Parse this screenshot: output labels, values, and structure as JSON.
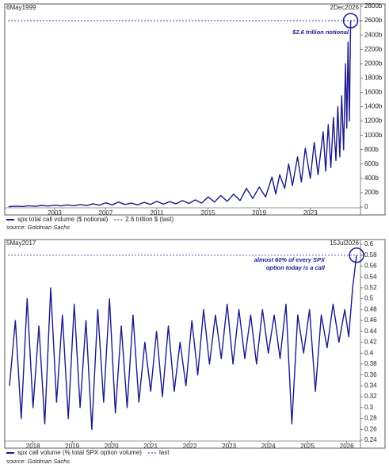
{
  "chart_data": [
    {
      "type": "line",
      "start_label": "6May1999",
      "end_label": "2Dec2026",
      "xlim": [
        1999.35,
        2026.92
      ],
      "xticks": [
        2003,
        2007,
        2011,
        2015,
        2019,
        2023
      ],
      "ylim": [
        0,
        2800
      ],
      "yticks": [
        {
          "value": 0,
          "label": "0"
        },
        {
          "value": 200,
          "label": "200b"
        },
        {
          "value": 400,
          "label": "400b"
        },
        {
          "value": 600,
          "label": "600b"
        },
        {
          "value": 800,
          "label": "800b"
        },
        {
          "value": 1000,
          "label": "1000b"
        },
        {
          "value": 1200,
          "label": "1200b"
        },
        {
          "value": 1400,
          "label": "1400b"
        },
        {
          "value": 1600,
          "label": "1600b"
        },
        {
          "value": 1800,
          "label": "1800b"
        },
        {
          "value": 2000,
          "label": "2000b"
        },
        {
          "value": 2200,
          "label": "2200b"
        },
        {
          "value": 2400,
          "label": "2400b"
        },
        {
          "value": 2600,
          "label": "2600b"
        },
        {
          "value": 2800,
          "label": "2800b"
        }
      ],
      "x": [
        1999.4,
        2000,
        2000.5,
        2001,
        2001.5,
        2002,
        2002.5,
        2003,
        2003.5,
        2004,
        2004.5,
        2005,
        2005.5,
        2006,
        2006.5,
        2007,
        2007.5,
        2008,
        2008.5,
        2009,
        2009.5,
        2010,
        2010.5,
        2011,
        2011.5,
        2012,
        2012.5,
        2013,
        2013.5,
        2014,
        2014.5,
        2015,
        2015.5,
        2016,
        2016.5,
        2017,
        2017.5,
        2018,
        2018.5,
        2019,
        2019.5,
        2020,
        2020.3,
        2020.6,
        2021,
        2021.3,
        2021.6,
        2022,
        2022.3,
        2022.6,
        2023,
        2023.3,
        2023.6,
        2024,
        2024.2,
        2024.4,
        2024.6,
        2024.8,
        2025,
        2025.15,
        2025.3,
        2025.45,
        2025.6,
        2025.75,
        2025.85,
        2025.95,
        2026.05,
        2026.15
      ],
      "series": [
        {
          "name": "spx total call volume ($ notional)",
          "color": "#1a1a8c",
          "values": [
            5,
            12,
            8,
            18,
            10,
            22,
            14,
            25,
            15,
            30,
            18,
            35,
            20,
            45,
            25,
            60,
            30,
            70,
            35,
            55,
            30,
            65,
            35,
            80,
            40,
            75,
            45,
            90,
            50,
            100,
            55,
            140,
            70,
            160,
            80,
            180,
            90,
            260,
            120,
            280,
            140,
            420,
            180,
            450,
            260,
            600,
            300,
            700,
            350,
            820,
            400,
            900,
            450,
            1050,
            500,
            1150,
            550,
            1250,
            650,
            1400,
            700,
            1550,
            800,
            2000,
            1100,
            2300,
            1200,
            2600
          ]
        }
      ],
      "reference_line": {
        "name": "2.6 trillion $ (last)",
        "value": 2600,
        "color": "#1a1a8c"
      },
      "annotation": [
        "$2.6 trillion notional"
      ],
      "source": "source: Goldman Sachs"
    },
    {
      "type": "line",
      "start_label": "5May2017",
      "end_label": "15Jul2026",
      "xlim": [
        2017.36,
        2026.35
      ],
      "xticks": [
        2018,
        2019,
        2020,
        2021,
        2022,
        2023,
        2024,
        2025,
        2026
      ],
      "ylim": [
        0.24,
        0.6
      ],
      "yticks": [
        0.24,
        0.26,
        0.28,
        0.3,
        0.32,
        0.34,
        0.36,
        0.38,
        0.4,
        0.42,
        0.44,
        0.46,
        0.48,
        0.5,
        0.52,
        0.54,
        0.56,
        0.58,
        0.6
      ],
      "x": [
        2017.4,
        2017.55,
        2017.7,
        2017.85,
        2018,
        2018.15,
        2018.3,
        2018.45,
        2018.6,
        2018.75,
        2018.9,
        2019.05,
        2019.2,
        2019.35,
        2019.5,
        2019.65,
        2019.8,
        2019.95,
        2020.1,
        2020.25,
        2020.4,
        2020.55,
        2020.7,
        2020.85,
        2021,
        2021.15,
        2021.3,
        2021.45,
        2021.6,
        2021.75,
        2021.9,
        2022.05,
        2022.2,
        2022.35,
        2022.5,
        2022.65,
        2022.8,
        2022.95,
        2023.1,
        2023.25,
        2023.4,
        2023.55,
        2023.7,
        2023.85,
        2024,
        2024.15,
        2024.3,
        2024.45,
        2024.6,
        2024.75,
        2024.9,
        2025.05,
        2025.2,
        2025.35,
        2025.5,
        2025.65,
        2025.8,
        2025.95,
        2026.05,
        2026.15,
        2026.25
      ],
      "series": [
        {
          "name": "spx call volume (% total SPX option volume)",
          "color": "#1a1a8c",
          "values": [
            0.34,
            0.46,
            0.28,
            0.5,
            0.3,
            0.45,
            0.27,
            0.52,
            0.31,
            0.47,
            0.28,
            0.49,
            0.3,
            0.46,
            0.26,
            0.48,
            0.31,
            0.5,
            0.29,
            0.45,
            0.3,
            0.47,
            0.31,
            0.42,
            0.33,
            0.44,
            0.32,
            0.45,
            0.33,
            0.42,
            0.34,
            0.46,
            0.36,
            0.48,
            0.38,
            0.47,
            0.39,
            0.49,
            0.38,
            0.48,
            0.39,
            0.47,
            0.38,
            0.48,
            0.4,
            0.47,
            0.39,
            0.49,
            0.27,
            0.47,
            0.4,
            0.48,
            0.33,
            0.47,
            0.41,
            0.49,
            0.42,
            0.48,
            0.43,
            0.52,
            0.58
          ]
        }
      ],
      "reference_line": {
        "name": "last",
        "value": 0.58,
        "color": "#1a1a8c"
      },
      "annotation": [
        "almost 60% of every SPX",
        "option today is a call"
      ],
      "source": "source: Goldman Sachs"
    }
  ]
}
